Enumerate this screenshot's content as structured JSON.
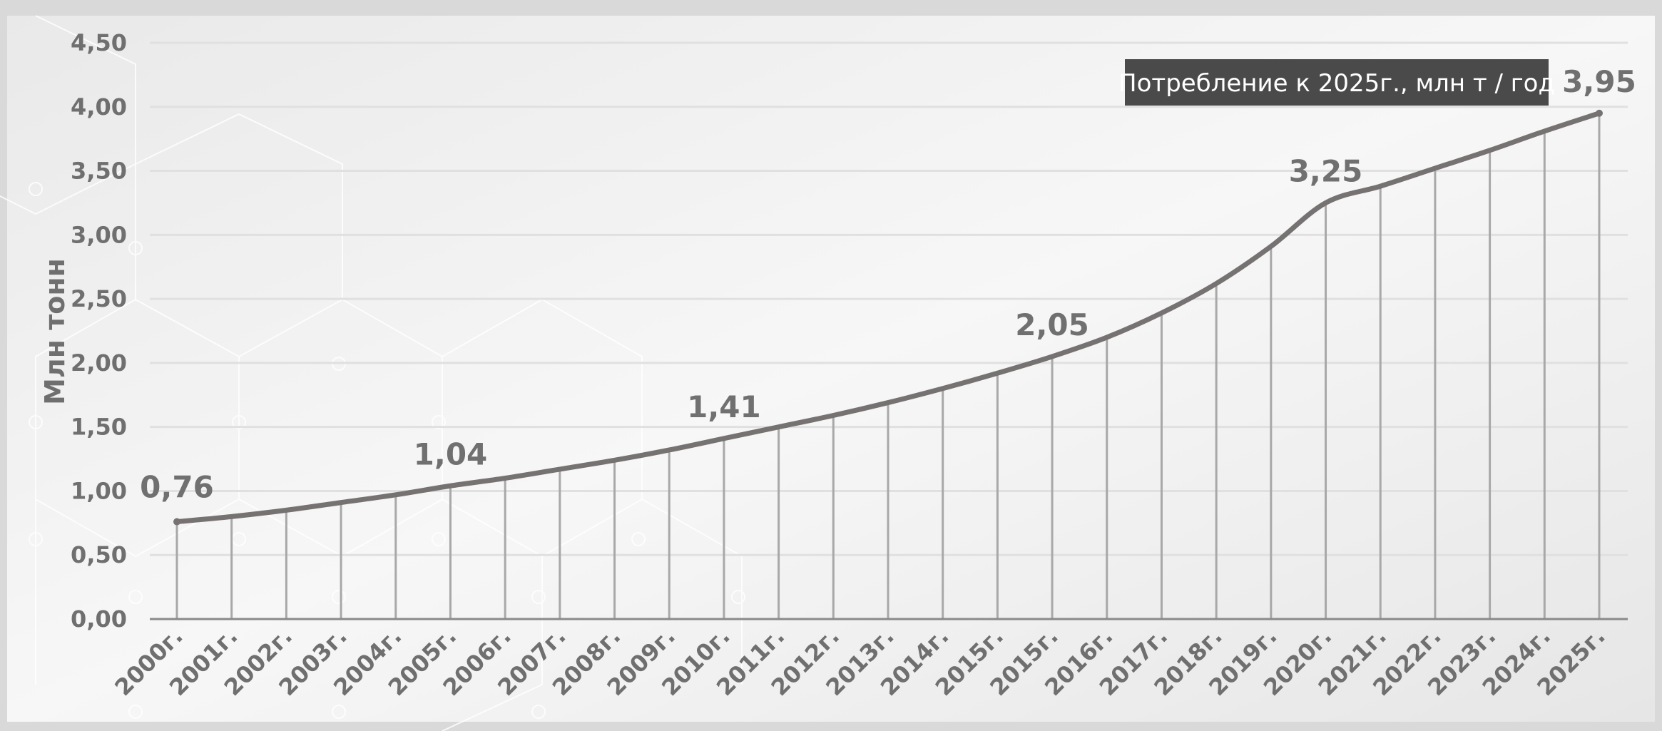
{
  "chart_data": {
    "type": "line",
    "ylabel": "Млн тонн",
    "legend_text": "Потребление к 2025г., млн т / год",
    "legend_position": "top-right",
    "categories": [
      "2000г.",
      "2001г.",
      "2002г.",
      "2003г.",
      "2004г.",
      "2005г.",
      "2006г.",
      "2007г.",
      "2008г.",
      "2009г.",
      "2010г.",
      "2011г.",
      "2012г.",
      "2013г.",
      "2014г.",
      "2015г.",
      "2015г.",
      "2016г.",
      "2017г.",
      "2018г.",
      "2019г.",
      "2020г.",
      "2021г.",
      "2022г.",
      "2023г.",
      "2024г.",
      "2025г."
    ],
    "values": [
      0.76,
      0.8,
      0.85,
      0.91,
      0.97,
      1.04,
      1.1,
      1.17,
      1.24,
      1.32,
      1.41,
      1.5,
      1.59,
      1.69,
      1.8,
      1.92,
      2.05,
      2.2,
      2.39,
      2.62,
      2.91,
      3.25,
      3.38,
      3.52,
      3.66,
      3.81,
      3.95
    ],
    "data_labels": [
      {
        "index": 0,
        "text": "0,76"
      },
      {
        "index": 5,
        "text": "1,04"
      },
      {
        "index": 10,
        "text": "1,41"
      },
      {
        "index": 16,
        "text": "2,05"
      },
      {
        "index": 21,
        "text": "3,25"
      },
      {
        "index": 26,
        "text": "3,95"
      }
    ],
    "y_ticks": [
      "0,00",
      "0,50",
      "1,00",
      "1,50",
      "2,00",
      "2,50",
      "3,00",
      "3,50",
      "4,00",
      "4,50"
    ],
    "ylim": [
      0,
      4.5
    ],
    "grid": true,
    "colors": {
      "line": "#767272",
      "drop_lines": "#a8a8a8",
      "grid": "#e0e0e0",
      "axis": "#8a8a8a",
      "legend_bg": "#4a4a4a"
    }
  }
}
